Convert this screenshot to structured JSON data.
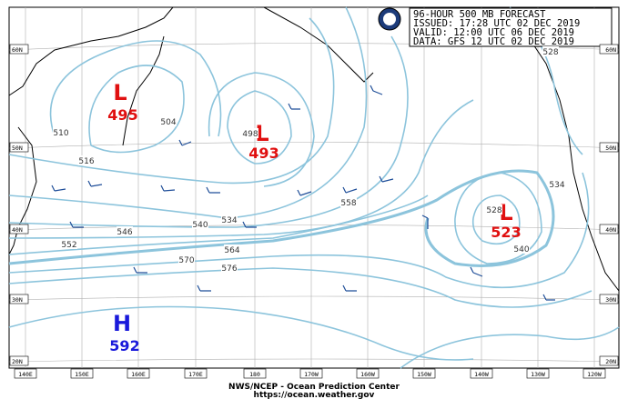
{
  "header": {
    "lines": [
      "96-HOUR 500 MB FORECAST",
      "ISSUED: 17:28 UTC 02 DEC 2019",
      "VALID:  12:00 UTC 06 DEC 2019",
      "DATA:  GFS 12 UTC 02 DEC 2019"
    ]
  },
  "centers": [
    {
      "symbol": "L",
      "value": "495"
    },
    {
      "symbol": "L",
      "value": "493"
    },
    {
      "symbol": "L",
      "value": "523"
    },
    {
      "symbol": "H",
      "value": "592"
    }
  ],
  "contour_labels": [
    "504",
    "510",
    "516",
    "498",
    "534",
    "540",
    "546",
    "552",
    "558",
    "564",
    "570",
    "576",
    "528",
    "534",
    "528",
    "540"
  ],
  "latitude_labels": [
    "60N",
    "50N",
    "40N",
    "30N",
    "20N"
  ],
  "longitude_labels": [
    "140E",
    "150E",
    "160E",
    "170E",
    "180",
    "170W",
    "160W",
    "150W",
    "140W",
    "130W",
    "120W"
  ],
  "footer": {
    "agency": "NWS/NCEP - Ocean Prediction Center",
    "url": "https://ocean.weather.gov"
  }
}
